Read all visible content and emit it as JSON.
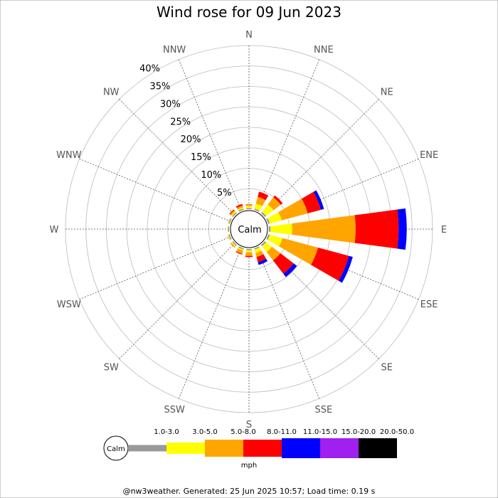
{
  "chart_data": {
    "type": "wind-rose",
    "title": "Wind rose for 09 Jun 2023",
    "directions": [
      "N",
      "NNE",
      "NE",
      "ENE",
      "E",
      "ESE",
      "SE",
      "SSE",
      "S",
      "SSW",
      "SW",
      "WSW",
      "W",
      "WNW",
      "NW",
      "NNW"
    ],
    "radial_ticks": [
      "5%",
      "10%",
      "15%",
      "20%",
      "25%",
      "30%",
      "35%",
      "40%"
    ],
    "radial_max": 40,
    "calm_label": "Calm",
    "speed_bins": [
      {
        "label": "1.0-3.0",
        "color": "#999999"
      },
      {
        "label": "3.0-5.0",
        "color": "#ffff00"
      },
      {
        "label": "5.0-8.0",
        "color": "#ffa500"
      },
      {
        "label": "8.0-11.0",
        "color": "#ff0000"
      },
      {
        "label": "11.0-15.0",
        "color": "#0000ff"
      },
      {
        "label": "15.0-20.0",
        "color": "#a020f0"
      },
      {
        "label": "20.0-50.0",
        "color": "#000000"
      }
    ],
    "unit": "mph",
    "series": [
      {
        "direction": "N",
        "values": [
          0.3,
          0.5,
          0.3,
          0.1,
          0,
          0,
          0
        ]
      },
      {
        "direction": "NNE",
        "values": [
          0.3,
          1.3,
          1.7,
          1.3,
          0,
          0,
          0
        ]
      },
      {
        "direction": "NE",
        "values": [
          0.4,
          2.3,
          2.2,
          0.6,
          0,
          0,
          0
        ]
      },
      {
        "direction": "ENE",
        "values": [
          0.4,
          3.0,
          6.6,
          3.3,
          0.8,
          0,
          0
        ]
      },
      {
        "direction": "E",
        "values": [
          0.4,
          5.3,
          15.5,
          10.5,
          2.0,
          0,
          0
        ]
      },
      {
        "direction": "ESE",
        "values": [
          0.4,
          3.2,
          9.0,
          7.8,
          1.0,
          0,
          0
        ]
      },
      {
        "direction": "SE",
        "values": [
          0.4,
          1.8,
          2.6,
          4.1,
          1.0,
          0,
          0
        ]
      },
      {
        "direction": "SSE",
        "values": [
          0.3,
          0.9,
          1.0,
          1.3,
          0.7,
          0,
          0
        ]
      },
      {
        "direction": "S",
        "values": [
          0.3,
          0.5,
          0.9,
          0.3,
          0,
          0,
          0
        ]
      },
      {
        "direction": "SSW",
        "values": [
          0.3,
          0.3,
          0.8,
          0.2,
          0,
          0,
          0
        ]
      },
      {
        "direction": "SW",
        "values": [
          0.3,
          0.3,
          0.3,
          0,
          0,
          0,
          0
        ]
      },
      {
        "direction": "WSW",
        "values": [
          0.3,
          0.2,
          0.1,
          0,
          0,
          0,
          0
        ]
      },
      {
        "direction": "W",
        "values": [
          0.3,
          0.1,
          0,
          0,
          0,
          0,
          0
        ]
      },
      {
        "direction": "WNW",
        "values": [
          0.3,
          0.1,
          0.1,
          0,
          0,
          0,
          0
        ]
      },
      {
        "direction": "NW",
        "values": [
          0.3,
          0.3,
          0.4,
          0.2,
          0,
          0,
          0
        ]
      },
      {
        "direction": "NNW",
        "values": [
          0.3,
          0.3,
          0.5,
          0.4,
          0,
          0,
          0
        ]
      }
    ]
  },
  "footer": "@nw3weather. Generated: 25 Jun 2025 10:57; Load time: 0.19 s"
}
